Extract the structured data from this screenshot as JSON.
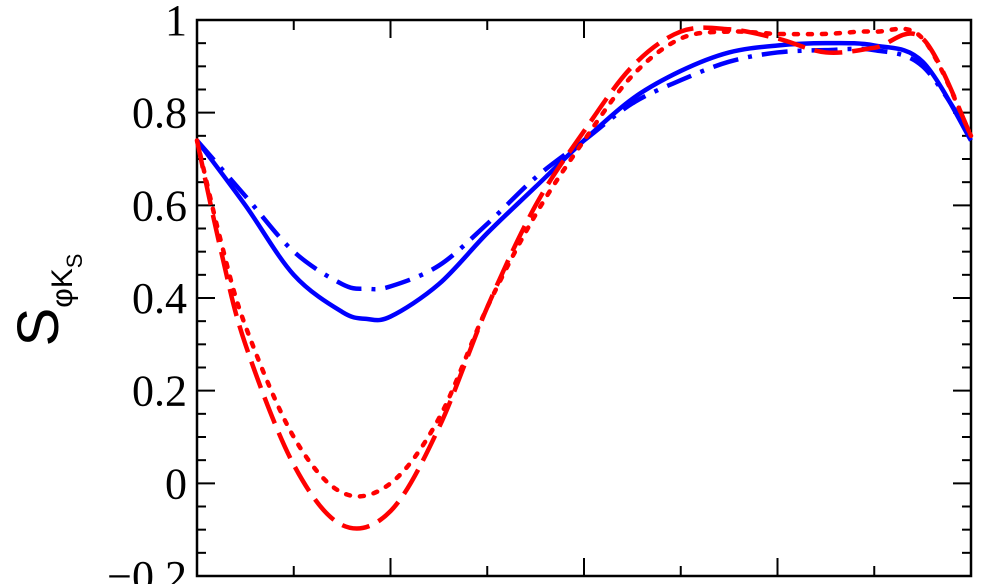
{
  "chart_data": {
    "type": "line",
    "ylabel": {
      "main": "S",
      "sub": "φK",
      "subsub": "S"
    },
    "ylim": [
      -0.2,
      1.0
    ],
    "xlim": [
      0,
      8
    ],
    "y_ticks": [
      {
        "value": -0.2,
        "label": "−0.2"
      },
      {
        "value": 0,
        "label": "0"
      },
      {
        "value": 0.2,
        "label": "0.2"
      },
      {
        "value": 0.4,
        "label": "0.4"
      },
      {
        "value": 0.6,
        "label": "0.6"
      },
      {
        "value": 0.8,
        "label": "0.8"
      },
      {
        "value": 1.0,
        "label": "1"
      }
    ],
    "x_major_ticks": [
      0,
      2,
      4,
      6,
      8
    ],
    "x_minor_ticks": [
      1,
      3,
      5,
      7
    ],
    "y_minor_step": 0.05,
    "grid": false,
    "series": [
      {
        "color": "#0000ff",
        "dash": "solid",
        "x": [
          0,
          0.5,
          1.0,
          1.5,
          1.75,
          2.0,
          2.5,
          3.0,
          3.5,
          4.0,
          4.5,
          5.0,
          5.5,
          6.0,
          6.5,
          7.0,
          7.5,
          8.0
        ],
        "y": [
          0.74,
          0.6,
          0.45,
          0.37,
          0.355,
          0.36,
          0.43,
          0.54,
          0.64,
          0.74,
          0.83,
          0.89,
          0.93,
          0.945,
          0.95,
          0.945,
          0.91,
          0.74
        ]
      },
      {
        "color": "#0000ff",
        "dash": "dashdot",
        "x": [
          0,
          0.5,
          1.0,
          1.5,
          1.75,
          2.0,
          2.5,
          3.0,
          3.5,
          4.0,
          4.5,
          5.0,
          5.5,
          6.0,
          6.5,
          7.0,
          7.5,
          8.0
        ],
        "y": [
          0.74,
          0.62,
          0.5,
          0.43,
          0.42,
          0.425,
          0.47,
          0.56,
          0.66,
          0.74,
          0.82,
          0.87,
          0.91,
          0.93,
          0.935,
          0.935,
          0.9,
          0.75
        ]
      },
      {
        "color": "#ff0000",
        "dash": "dashed",
        "x": [
          0,
          0.25,
          0.5,
          1.0,
          1.5,
          2.0,
          2.5,
          3.0,
          3.5,
          4.0,
          4.5,
          5.0,
          5.5,
          6.0,
          6.5,
          7.0,
          7.5,
          8.0
        ],
        "y": [
          0.74,
          0.5,
          0.3,
          0.04,
          -0.09,
          -0.06,
          0.12,
          0.38,
          0.6,
          0.76,
          0.9,
          0.975,
          0.98,
          0.96,
          0.93,
          0.94,
          0.96,
          0.75
        ]
      },
      {
        "color": "#ff0000",
        "dash": "dotted",
        "x": [
          0,
          0.25,
          0.5,
          1.0,
          1.5,
          2.0,
          2.5,
          3.0,
          3.5,
          4.0,
          4.5,
          5.0,
          5.5,
          6.0,
          6.5,
          7.0,
          7.5,
          8.0
        ],
        "y": [
          0.74,
          0.52,
          0.34,
          0.1,
          -0.02,
          0.0,
          0.14,
          0.38,
          0.58,
          0.74,
          0.88,
          0.96,
          0.975,
          0.97,
          0.97,
          0.975,
          0.96,
          0.75
        ]
      }
    ]
  }
}
